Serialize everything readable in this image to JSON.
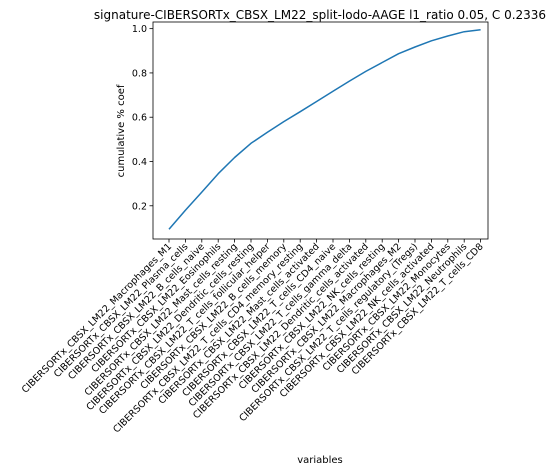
{
  "chart_data": {
    "type": "line",
    "title": "signature-CIBERSORTx_CBSX_LM22_split-lodo-AAGE l1_ratio 0.05, C 0.2336",
    "xlabel": "variables",
    "ylabel": "cumulative % coef",
    "ylim": [
      0.05,
      1.03
    ],
    "yticks": [
      0.2,
      0.4,
      0.6,
      0.8,
      1.0
    ],
    "ytick_labels": [
      "0.2",
      "0.4",
      "0.6",
      "0.8",
      "1.0"
    ],
    "grid": false,
    "categories": [
      "CIBERSORTx_CBSX_LM22_Macrophages_M1",
      "CIBERSORTx_CBSX_LM22_Plasma_cells",
      "CIBERSORTx_CBSX_LM22_B_cells_naive",
      "CIBERSORTx_CBSX_LM22_Eosinophils",
      "CIBERSORTx_CBSX_LM22_Mast_cells_resting",
      "CIBERSORTx_CBSX_LM22_Dendritic_cells_resting",
      "CIBERSORTx_CBSX_LM22_T_cells_follicular_helper",
      "CIBERSORTx_CBSX_LM22_B_cells_memory",
      "CIBERSORTx_CBSX_LM22_T_cells_CD4_memory_resting",
      "CIBERSORTx_CBSX_LM22_Mast_cells_activated",
      "CIBERSORTx_CBSX_LM22_T_cells_CD4_naive",
      "CIBERSORTx_CBSX_LM22_T_cells_gamma_delta",
      "CIBERSORTx_CBSX_LM22_Dendritic_cells_activated",
      "CIBERSORTx_CBSX_LM22_NK_cells_resting",
      "CIBERSORTx_CBSX_LM22_Macrophages_M2",
      "CIBERSORTx_CBSX_LM22_T_cells_regulatory_(Tregs)",
      "CIBERSORTx_CBSX_LM22_NK_cells_activated",
      "CIBERSORTx_CBSX_LM22_Monocytes",
      "CIBERSORTx_CBSX_LM22_Neutrophils",
      "CIBERSORTx_CBSX_LM22_T_cells_CD8"
    ],
    "series": [
      {
        "color": "#1f77b4",
        "values": [
          0.094,
          0.18,
          0.262,
          0.345,
          0.418,
          0.482,
          0.532,
          0.58,
          0.625,
          0.671,
          0.717,
          0.763,
          0.807,
          0.847,
          0.887,
          0.917,
          0.945,
          0.967,
          0.986,
          0.995
        ]
      }
    ]
  }
}
